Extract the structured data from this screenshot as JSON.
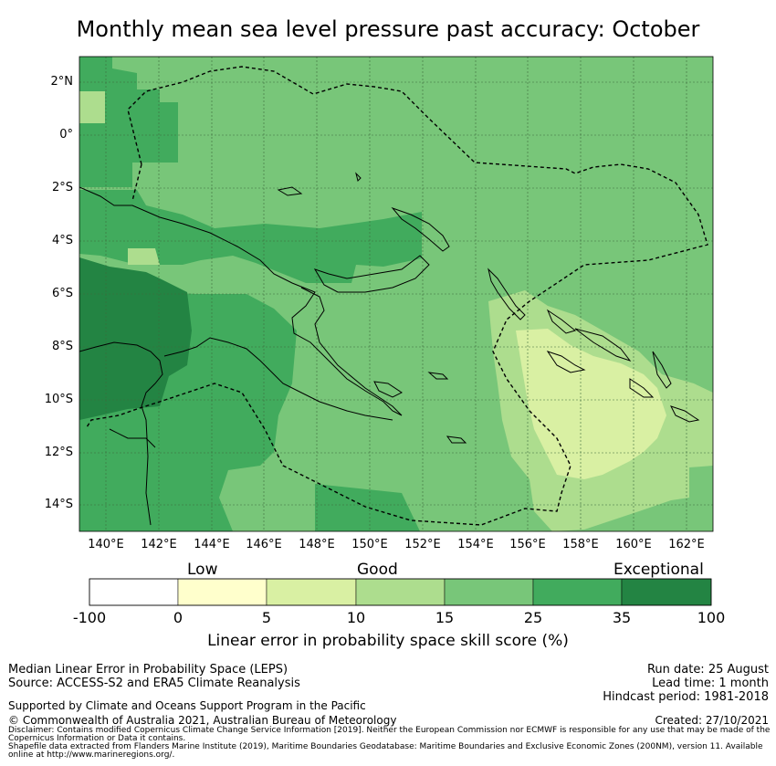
{
  "title": "Monthly mean sea level pressure past accuracy: October",
  "map": {
    "lat_labels": [
      "2°N",
      "0°",
      "2°S",
      "4°S",
      "6°S",
      "8°S",
      "10°S",
      "12°S",
      "14°S"
    ],
    "lon_labels": [
      "140°E",
      "142°E",
      "144°E",
      "146°E",
      "148°E",
      "150°E",
      "152°E",
      "154°E",
      "156°E",
      "158°E",
      "160°E",
      "162°E"
    ],
    "lat_range": [
      -15,
      3
    ],
    "lon_range": [
      139,
      163
    ]
  },
  "colorbar": {
    "categories": [
      "Low",
      "Good",
      "Exceptional"
    ],
    "ticks": [
      "-100",
      "0",
      "5",
      "10",
      "15",
      "25",
      "35",
      "100"
    ],
    "colors": [
      "#ffffff",
      "#ffffcc",
      "#d9f0a3",
      "#addd8e",
      "#78c679",
      "#41ab5d",
      "#238443"
    ],
    "title": "Linear error in probability space skill score (%)"
  },
  "footer": {
    "method": "Median Linear Error in Probability Space (LEPS)",
    "source": "Source: ACCESS-S2 and ERA5 Climate Reanalysis",
    "run_date": "Run date: 25 August",
    "lead_time": "Lead time: 1 month",
    "hindcast": "Hindcast period: 1981-2018",
    "support": "Supported by Climate and Oceans Support Program in the Pacific",
    "copyright": "© Commonwealth of Australia 2021, Australian Bureau of Meteorology",
    "created": "Created: 27/10/2021",
    "disclaimer": "Disclaimer: Contains modified Copernicus Climate Change Service Information [2019]. Neither the European Commission nor ECMWF is responsible for any use that may be made of the Copernicus Information or Data it contains.",
    "shapefile": "Shapefile data extracted from Flanders Marine Institute (2019), Maritime Boundaries Geodatabase: Maritime Boundaries and Exclusive Economic Zones (200NM), version 11. Available online at http://www.marineregions.org/."
  }
}
